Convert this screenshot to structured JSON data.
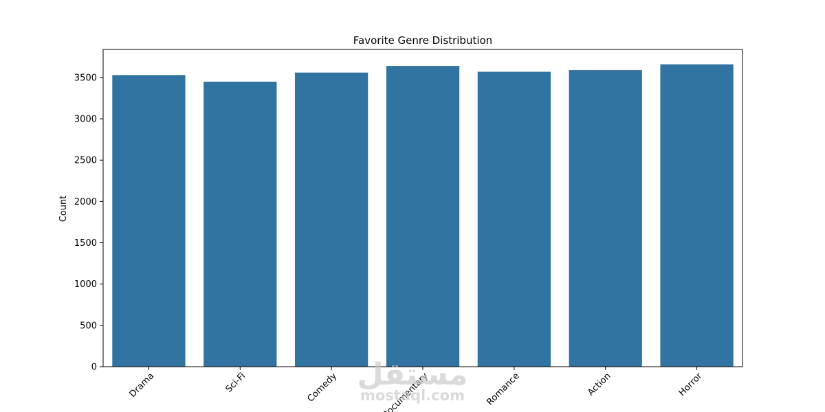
{
  "chart_data": {
    "type": "bar",
    "title": "Favorite Genre Distribution",
    "xlabel": "",
    "ylabel": "Count",
    "categories": [
      "Drama",
      "Sci-Fi",
      "Comedy",
      "Documentary",
      "Romance",
      "Action",
      "Horror"
    ],
    "values": [
      3530,
      3450,
      3560,
      3640,
      3570,
      3590,
      3660
    ],
    "ylim": [
      0,
      3840
    ],
    "yticks": [
      0,
      500,
      1000,
      1500,
      2000,
      2500,
      3000,
      3500
    ],
    "ytick_labels": [
      "0",
      "500",
      "1000",
      "1500",
      "2000",
      "2500",
      "3000",
      "3500"
    ],
    "grid": false,
    "legend": "none",
    "bar_color": "#3274a1"
  },
  "watermark": {
    "arabic": "مستقل",
    "latin": "mostaql.com"
  }
}
